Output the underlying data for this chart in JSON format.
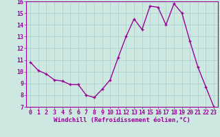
{
  "x": [
    0,
    1,
    2,
    3,
    4,
    5,
    6,
    7,
    8,
    9,
    10,
    11,
    12,
    13,
    14,
    15,
    16,
    17,
    18,
    19,
    20,
    21,
    22,
    23
  ],
  "y": [
    10.8,
    10.1,
    9.8,
    9.3,
    9.2,
    8.9,
    8.9,
    8.0,
    7.8,
    8.5,
    9.3,
    11.2,
    13.0,
    14.5,
    13.6,
    15.6,
    15.5,
    14.0,
    15.8,
    15.0,
    12.6,
    10.4,
    8.7,
    7.0
  ],
  "line_color": "#990099",
  "marker": "+",
  "marker_size": 3,
  "marker_linewidth": 1.0,
  "xlabel": "Windchill (Refroidissement éolien,°C)",
  "xlabel_fontsize": 6.5,
  "xlim": [
    -0.5,
    23.5
  ],
  "ylim": [
    7,
    16
  ],
  "yticks": [
    7,
    8,
    9,
    10,
    11,
    12,
    13,
    14,
    15,
    16
  ],
  "xticks": [
    0,
    1,
    2,
    3,
    4,
    5,
    6,
    7,
    8,
    9,
    10,
    11,
    12,
    13,
    14,
    15,
    16,
    17,
    18,
    19,
    20,
    21,
    22,
    23
  ],
  "bg_color": "#cce8e0",
  "grid_color": "#aacccc",
  "tick_fontsize": 6,
  "linewidth": 1.0
}
